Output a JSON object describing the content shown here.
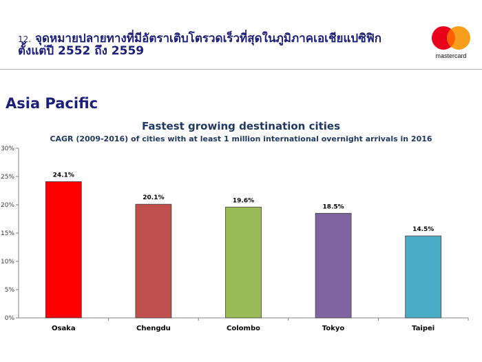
{
  "header": {
    "number": "12.",
    "line1": "จุดหมายปลายทางที่มีอัตราเติบโตรวดเร็วที่สุดในภูมิภาคเอเชียแปซิฟิก",
    "line2": "ตั้งแต่ปี 2552 ถึง 2559"
  },
  "logo": {
    "wordmark": "mastercard",
    "colors": [
      "#eb001b",
      "#f79e1b",
      "#ff5f00"
    ]
  },
  "region_label": "Asia Pacific",
  "chart_data": {
    "type": "bar",
    "title": "Fastest growing destination cities",
    "subtitle": "CAGR (2009-2016) of cities with at least 1 million international overnight arrivals in 2016",
    "categories": [
      "Osaka",
      "Chengdu",
      "Colombo",
      "Tokyo",
      "Taipei"
    ],
    "values": [
      24.1,
      20.1,
      19.6,
      18.5,
      14.5
    ],
    "data_labels": [
      "24.1%",
      "20.1%",
      "19.6%",
      "18.5%",
      "14.5%"
    ],
    "colors": [
      "#ff0000",
      "#c0504d",
      "#9bbb59",
      "#8064a2",
      "#4bacc6"
    ],
    "ylim": [
      0,
      30
    ],
    "yticks": [
      "0%",
      "5%",
      "10%",
      "15%",
      "20%",
      "25%",
      "30%"
    ],
    "xlabel": "",
    "ylabel": "",
    "grid": false,
    "legend": "none"
  }
}
